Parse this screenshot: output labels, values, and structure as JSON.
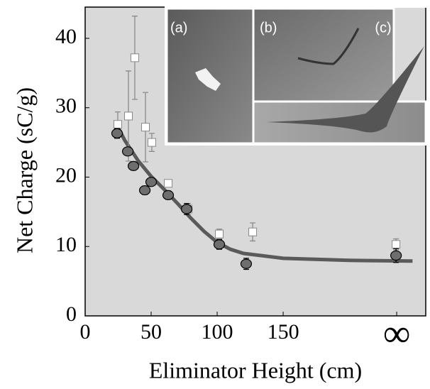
{
  "chart_data": {
    "type": "scatter",
    "xlabel": "Eliminator Height (cm)",
    "ylabel": "Net Charge (sC/g)",
    "xlim": [
      0,
      258
    ],
    "ylim": [
      0,
      44.5
    ],
    "xticks": [
      0,
      50,
      100,
      150,
      {
        "value": 236,
        "label": "∞"
      }
    ],
    "yticks": [
      0,
      10,
      20,
      30,
      40
    ],
    "grid": false,
    "series": [
      {
        "marker": "square",
        "color": "#ffffff",
        "x": [
          24.7,
          32.8,
          37.6,
          45.7,
          50.5,
          62.9,
          78,
          101.6,
          126.9,
          235.5
        ],
        "values": [
          27.6,
          28.8,
          37.2,
          27.2,
          25.0,
          19.1,
          15.4,
          11.8,
          12.1,
          10.3
        ],
        "errors": [
          1.8,
          6.5,
          6.0,
          5.0,
          1.3,
          0.3,
          0.8,
          0.7,
          1.3,
          0.8
        ]
      },
      {
        "marker": "circle",
        "color": "#6e6e6e",
        "x": [
          24.2,
          32.3,
          36.6,
          45.2,
          50,
          62.9,
          76.9,
          101.6,
          122,
          235.5
        ],
        "values": [
          26.3,
          23.7,
          21.6,
          18.1,
          19.3,
          17.4,
          15.4,
          10.3,
          7.5,
          8.7
        ],
        "errors": [
          0.7,
          0.5,
          0.6,
          0.6,
          0.4,
          0.6,
          0.8,
          0.7,
          0.8,
          1.0
        ]
      }
    ],
    "curve": {
      "color": "#5a5a5a",
      "x": [
        24,
        30,
        40,
        50,
        60,
        70,
        80,
        90,
        100,
        110,
        120,
        150,
        200,
        248
      ],
      "values": [
        27.5,
        25.3,
        22.4,
        20.1,
        18.2,
        16.2,
        14.1,
        12.2,
        10.6,
        9.6,
        9.0,
        8.3,
        8.0,
        7.9
      ]
    },
    "insets": [
      "(a)",
      "(b)",
      "(c)"
    ]
  }
}
